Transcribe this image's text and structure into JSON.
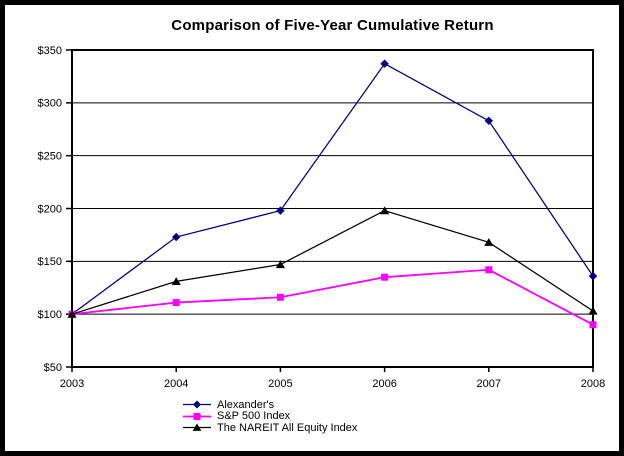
{
  "chart_data": {
    "type": "line",
    "title": "Comparison of Five-Year Cumulative Return",
    "xlabel": "",
    "ylabel": "",
    "x_labels": [
      "2003",
      "2004",
      "2005",
      "2006",
      "2007",
      "2008"
    ],
    "y_ticks": [
      350,
      300,
      250,
      200,
      150,
      100,
      50
    ],
    "y_tick_labels": [
      "$350",
      "$300",
      "$250",
      "$200",
      "$150",
      "$100",
      "$50"
    ],
    "ylim": [
      50,
      350
    ],
    "grid": "horizontal-only",
    "legend_position": "bottom-left",
    "axis_color": "#000000",
    "background_color": "#ffffff",
    "series": [
      {
        "name": "Alexander's",
        "color": "#000080",
        "marker": "diamond",
        "values": [
          100,
          173,
          198,
          337,
          283,
          136
        ]
      },
      {
        "name": "S&P 500 Index",
        "color": "#FF00FF",
        "marker": "square",
        "values": [
          100,
          111,
          116,
          135,
          142,
          90
        ]
      },
      {
        "name": "The NAREIT All Equity Index",
        "color": "#000000",
        "marker": "triangle",
        "values": [
          100,
          131,
          147,
          198,
          168,
          103
        ]
      }
    ]
  }
}
